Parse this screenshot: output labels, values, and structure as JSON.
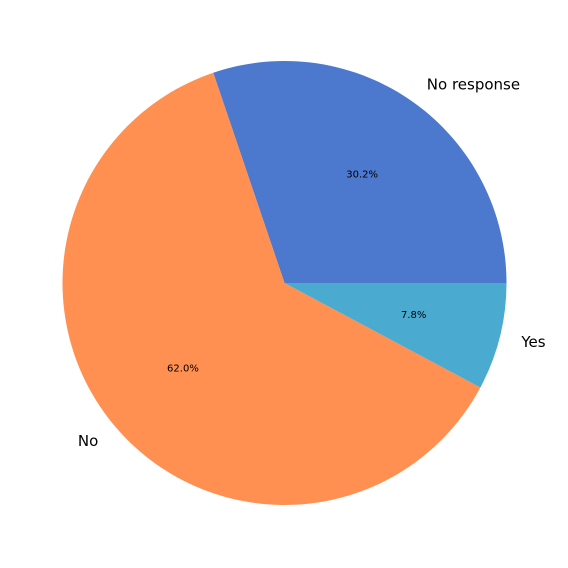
{
  "chart_data": {
    "type": "pie",
    "title": "",
    "slices": [
      {
        "label": "No response",
        "value": 30.2,
        "pct_label": "30.2%",
        "color": "#4c78ce"
      },
      {
        "label": "No",
        "value": 62.0,
        "pct_label": "62.0%",
        "color": "#ff9052"
      },
      {
        "label": "Yes",
        "value": 7.8,
        "pct_label": "7.8%",
        "color": "#4aaad0"
      }
    ],
    "start_angle_deg": 0,
    "direction": "counterclockwise",
    "legend": "none"
  }
}
